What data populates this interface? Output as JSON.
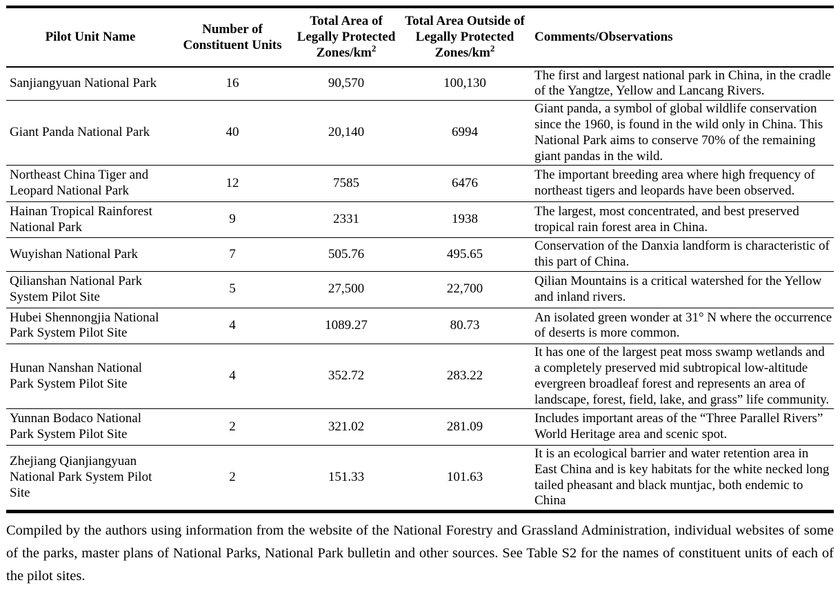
{
  "table": {
    "headers": [
      {
        "text": "Pilot Unit Name"
      },
      {
        "text": "Number of Constituent Units"
      },
      {
        "text": "Total Area of Legally Protected Zones/km",
        "sup": "2"
      },
      {
        "text": "Total Area Outside of Legally Protected Zones/km",
        "sup": "2"
      },
      {
        "text": "Comments/Observations"
      }
    ],
    "rows": [
      {
        "name": "Sanjiangyuan National Park",
        "units": "16",
        "protected": "90,570",
        "outside": "100,130",
        "comment": "The first and largest national park in China, in the cradle of the Yangtze, Yellow and Lancang Rivers."
      },
      {
        "name": "Giant Panda National Park",
        "units": "40",
        "protected": "20,140",
        "outside": "6994",
        "comment": "Giant panda, a symbol of global wildlife conservation since the 1960, is found in the wild only in China. This National Park aims to conserve 70% of the remaining giant pandas in the wild."
      },
      {
        "name": "Northeast China Tiger and Leopard National Park",
        "units": "12",
        "protected": "7585",
        "outside": "6476",
        "comment": "The important breeding area where high frequency of northeast tigers and leopards have been observed."
      },
      {
        "name": "Hainan Tropical Rainforest National Park",
        "units": "9",
        "protected": "2331",
        "outside": "1938",
        "comment": "The largest, most concentrated, and best preserved tropical rain forest area in China."
      },
      {
        "name": "Wuyishan National Park",
        "units": "7",
        "protected": "505.76",
        "outside": "495.65",
        "comment": "Conservation of the Danxia landform is characteristic of this part of China."
      },
      {
        "name": "Qilianshan National Park System Pilot Site",
        "units": "5",
        "protected": "27,500",
        "outside": "22,700",
        "comment": "Qilian Mountains is a critical watershed for the Yellow and inland rivers."
      },
      {
        "name": "Hubei Shennongjia National Park System Pilot Site",
        "units": "4",
        "protected": "1089.27",
        "outside": "80.73",
        "comment": "An isolated green wonder at 31° N where the occurrence of deserts is more common."
      },
      {
        "name": "Hunan Nanshan National Park System Pilot Site",
        "units": "4",
        "protected": "352.72",
        "outside": "283.22",
        "comment": "It has one of the largest peat moss swamp wetlands and a completely preserved mid subtropical low-altitude evergreen broadleaf forest and represents an area of landscape, forest, field, lake, and grass” life community."
      },
      {
        "name": "Yunnan Bodaco National Park System Pilot Site",
        "units": "2",
        "protected": "321.02",
        "outside": "281.09",
        "comment": "Includes important areas of the “Three Parallel Rivers” World Heritage area and scenic spot."
      },
      {
        "name": "Zhejiang Qianjiangyuan National Park System Pilot Site",
        "units": "2",
        "protected": "151.33",
        "outside": "101.63",
        "comment": "It is an ecological barrier and water retention area in East China and is key habitats for the white necked long tailed pheasant and black muntjac, both endemic to China"
      }
    ]
  },
  "footer": {
    "text": "Compiled by the authors using information from the website of the National Forestry and Grassland Administration, individual websites of some of the parks, master plans of National Parks, National Park bulletin and other sources. See Table S2 for the names of constituent units of each of the pilot sites."
  }
}
